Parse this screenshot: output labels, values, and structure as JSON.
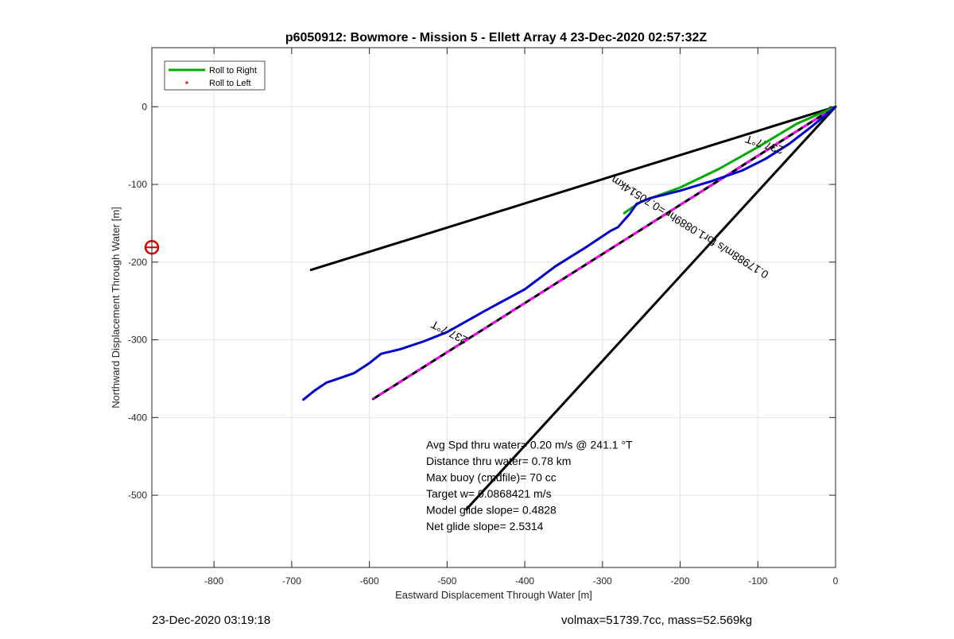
{
  "chart_data": {
    "type": "line",
    "title": "p6050912: Bowmore - Mission 5 - Ellett Array 4 23-Dec-2020 02:57:32Z",
    "xlabel": "Eastward Displacement Through Water [m]",
    "ylabel": "Northward Displacement Through Water [m]",
    "xlim": [
      -880,
      0
    ],
    "ylim": [
      -593,
      76
    ],
    "xticks": [
      -800,
      -700,
      -600,
      -500,
      -400,
      -300,
      -200,
      -100,
      0
    ],
    "yticks": [
      0,
      -100,
      -200,
      -300,
      -400,
      -500
    ],
    "xtick_labels": [
      "-800",
      "-700",
      "-600",
      "-500",
      "-400",
      "-300",
      "-200",
      "-100",
      "0"
    ],
    "ytick_labels": [
      "0",
      "-100",
      "-200",
      "-300",
      "-400",
      "-500"
    ],
    "grid": true,
    "legend": {
      "placement": "top-left",
      "entries": [
        {
          "label": "Roll to Right",
          "color": "#00aa00",
          "style": "line"
        },
        {
          "label": "Roll to Left",
          "color": "#ff0000",
          "style": "dot"
        }
      ]
    },
    "series": [
      {
        "name": "Roll to Right",
        "color": "#00aa00",
        "x": [
          0,
          -50,
          -100,
          -150,
          -200,
          -250,
          -265,
          -272
        ],
        "y": [
          0,
          -22,
          -52,
          -80,
          -104,
          -122,
          -132,
          -137
        ]
      },
      {
        "color": "#0000cc",
        "x": [
          0,
          -30,
          -60,
          -90,
          -120,
          -160,
          -200,
          -240,
          -256,
          -265,
          -273,
          -280,
          -290,
          -320,
          -360,
          -400,
          -450,
          -500,
          -530,
          -560,
          -585,
          -600,
          -620,
          -640,
          -655,
          -670,
          -685
        ],
        "y": [
          0,
          -25,
          -48,
          -67,
          -82,
          -96,
          -108,
          -118,
          -125,
          -138,
          -147,
          -155,
          -160,
          -180,
          -205,
          -235,
          -262,
          -290,
          -302,
          -312,
          -318,
          -330,
          -343,
          -350,
          -355,
          -365,
          -377
        ]
      },
      {
        "color": "#000000",
        "x": [
          0,
          -675
        ],
        "y": [
          0,
          -210
        ]
      },
      {
        "color": "#000000",
        "x": [
          0,
          -475
        ],
        "y": [
          0,
          -518
        ]
      },
      {
        "color": "#000000",
        "dash": "#ff00ff",
        "x": [
          0,
          -595
        ],
        "y": [
          0,
          -376
        ]
      }
    ],
    "annotations": [
      {
        "text": "237.7°T",
        "x": -90,
        "y": -44,
        "rotate": 198
      },
      {
        "text": "237.7°T",
        "x": -495,
        "y": -286,
        "rotate": 207
      },
      {
        "text": "0.17988m/s for1.0889hr =0.70514km",
        "x": -185,
        "y": -151,
        "rotate": 212
      },
      {
        "text": "Avg Spd thru water=  0.20 m/s @ 241.1 °T",
        "x": -527,
        "y": -440
      },
      {
        "text": "Distance thru water=  0.78 km",
        "x": -527,
        "y": -461
      },
      {
        "text": "Max buoy (cmdfile)= 70 cc",
        "x": -527,
        "y": -482
      },
      {
        "text": "Target w= 0.0868421 m/s",
        "x": -527,
        "y": -503
      },
      {
        "text": "Model glide slope= 0.4828",
        "x": -527,
        "y": -524
      },
      {
        "text": "Net glide slope= 2.5314",
        "x": -527,
        "y": -545
      }
    ],
    "marker": {
      "shape": "circle",
      "color": "#dd0000",
      "x": -880,
      "y": -181
    }
  },
  "footer": {
    "left": "23-Dec-2020 03:19:18",
    "right": "volmax=51739.7cc, mass=52.569kg"
  }
}
